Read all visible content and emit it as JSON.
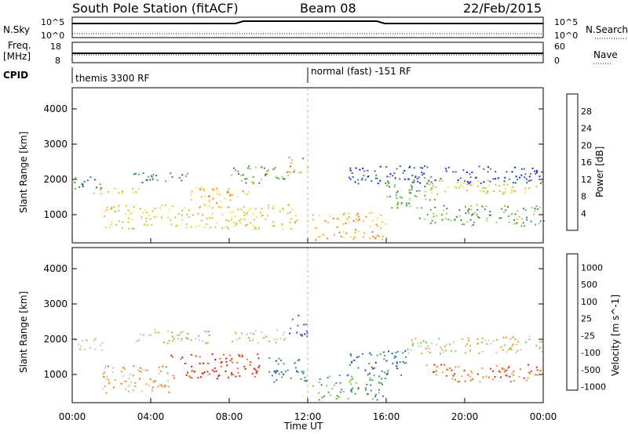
{
  "header": {
    "station": "South Pole Station (fitACF)",
    "beam": "Beam 08",
    "date": "22/Feb/2015"
  },
  "panels": {
    "nsky_label": "N.Sky",
    "nsky_ticks": [
      "10^5",
      "10^0"
    ],
    "nsearch_label": "N.Search",
    "freq_label_1": "Freq.",
    "freq_label_2": "[MHz]",
    "freq_ticks": [
      "18",
      "8"
    ],
    "nave_label": "Nave",
    "nave_ticks": [
      "60",
      "0"
    ],
    "cpid_label": "CPID",
    "cpid_mode_1": "themis 3300 RF",
    "cpid_mode_2": "normal (fast) -151 RF"
  },
  "chart_data": [
    {
      "type": "heatmap",
      "title": "",
      "xlabel": "Time UT",
      "ylabel": "Slant Range [km]",
      "xlim": [
        "00:00",
        "24:00"
      ],
      "ylim": [
        200,
        4600
      ],
      "y_ticks": [
        1000,
        2000,
        3000,
        4000
      ],
      "colorbar": {
        "label": "Power [dB]",
        "ticks": [
          "4",
          "8",
          "12",
          "16",
          "20",
          "24",
          "28"
        ],
        "colors": [
          "#1d14ff",
          "#2f57b8",
          "#3f7f5f",
          "#58b04a",
          "#a8d13a",
          "#f2e33a",
          "#f4b03a",
          "#f07a2a",
          "#e8401c",
          "#e01010"
        ]
      },
      "bands": [
        {
          "t0": 0.0,
          "t1": 1.5,
          "r0": 1700,
          "r1": 2100,
          "level": 2
        },
        {
          "t0": 1.0,
          "t1": 3.5,
          "r0": 1600,
          "r1": 1800,
          "level": 5
        },
        {
          "t0": 1.5,
          "t1": 11.5,
          "r0": 600,
          "r1": 1300,
          "level": 5
        },
        {
          "t0": 3.0,
          "t1": 6.0,
          "r0": 1900,
          "r1": 2200,
          "level": 2
        },
        {
          "t0": 6.0,
          "t1": 9.0,
          "r0": 1300,
          "r1": 1800,
          "level": 6
        },
        {
          "t0": 8.0,
          "t1": 11.0,
          "r0": 1900,
          "r1": 2400,
          "level": 3
        },
        {
          "t0": 11.0,
          "t1": 12.0,
          "r0": 2200,
          "r1": 2700,
          "level": 7
        },
        {
          "t0": 12.2,
          "t1": 16.0,
          "r0": 300,
          "r1": 1100,
          "level": 6
        },
        {
          "t0": 16.0,
          "t1": 18.5,
          "r0": 1200,
          "r1": 2100,
          "level": 3
        },
        {
          "t0": 18.0,
          "t1": 24.0,
          "r0": 1600,
          "r1": 2000,
          "level": 5
        },
        {
          "t0": 17.5,
          "t1": 24.0,
          "r0": 700,
          "r1": 1300,
          "level": 3
        },
        {
          "t0": 14.0,
          "t1": 24.0,
          "r0": 1900,
          "r1": 2400,
          "level": 1
        }
      ]
    },
    {
      "type": "heatmap",
      "title": "",
      "xlabel": "Time UT",
      "ylabel": "Slant Range [km]",
      "xlim": [
        "00:00",
        "24:00"
      ],
      "ylim": [
        200,
        4600
      ],
      "y_ticks": [
        1000,
        2000,
        3000,
        4000
      ],
      "x_ticks": [
        "00:00",
        "04:00",
        "08:00",
        "12:00",
        "16:00",
        "20:00",
        "00:00"
      ],
      "colorbar": {
        "label": "Velocity [m s^-1]",
        "ticks": [
          "1000",
          "500",
          "100",
          "25",
          "-25",
          "-100",
          "-500",
          "-1000"
        ],
        "colors": [
          "#2f3fb0",
          "#3f78c0",
          "#3aa05a",
          "#7ad03a",
          "#c8c8c0",
          "#f59a2a",
          "#f06a1a",
          "#e02a10",
          "#d01010"
        ]
      },
      "bands": [
        {
          "t0": 0.0,
          "t1": 1.5,
          "r0": 1700,
          "r1": 2100,
          "level": 4
        },
        {
          "t0": 1.5,
          "t1": 5.0,
          "r0": 500,
          "r1": 1300,
          "level": 5
        },
        {
          "t0": 5.0,
          "t1": 9.5,
          "r0": 900,
          "r1": 1600,
          "level": 7
        },
        {
          "t0": 3.0,
          "t1": 7.0,
          "r0": 1900,
          "r1": 2300,
          "level": 4
        },
        {
          "t0": 8.0,
          "t1": 11.0,
          "r0": 1900,
          "r1": 2300,
          "level": 4
        },
        {
          "t0": 11.0,
          "t1": 12.0,
          "r0": 2100,
          "r1": 2700,
          "level": 0
        },
        {
          "t0": 10.0,
          "t1": 12.0,
          "r0": 800,
          "r1": 1500,
          "level": 1
        },
        {
          "t0": 12.2,
          "t1": 16.0,
          "r0": 300,
          "r1": 1000,
          "level": 2
        },
        {
          "t0": 14.0,
          "t1": 17.0,
          "r0": 1000,
          "r1": 1700,
          "level": 1
        },
        {
          "t0": 17.0,
          "t1": 24.0,
          "r0": 1600,
          "r1": 2100,
          "level": 4
        },
        {
          "t0": 18.0,
          "t1": 24.0,
          "r0": 800,
          "r1": 1300,
          "level": 6
        }
      ]
    }
  ]
}
